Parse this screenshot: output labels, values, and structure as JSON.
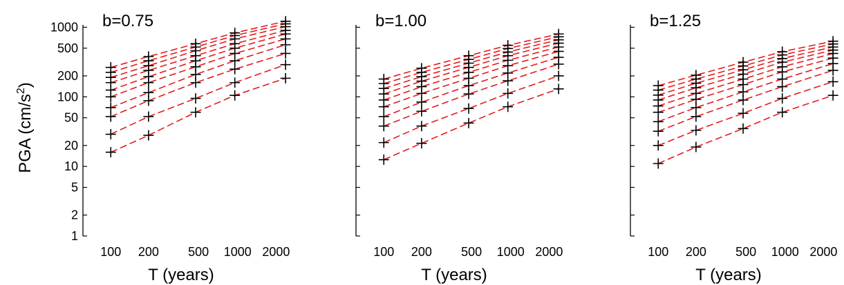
{
  "chart_data": [
    {
      "type": "line",
      "title": "b=0.75",
      "xlabel": "T (years)",
      "ylabel": "PGA (cm/s²)",
      "ylabel_base": "PGA (cm/s",
      "ylabel_sup": "2",
      "ylabel_close": ")",
      "xscale": "log",
      "yscale": "log",
      "xlim": [
        60,
        2700
      ],
      "ylim": [
        1,
        1300
      ],
      "xticks": [
        100,
        200,
        500,
        1000,
        2000
      ],
      "xticklabels": [
        "100",
        "200",
        "500",
        "1000",
        "2000"
      ],
      "yticks": [
        1,
        2,
        5,
        10,
        20,
        50,
        100,
        200,
        500,
        1000
      ],
      "yticklabels": [
        "1",
        "2",
        "5",
        "10",
        "20",
        "50",
        "100",
        "200",
        "500",
        "1000"
      ],
      "show_ytick_labels": true,
      "show_ylabel": true,
      "grid": false,
      "marker_x": [
        100,
        200,
        475,
        975,
        2475
      ],
      "series": [
        {
          "values": [
            16,
            28,
            60,
            105,
            185
          ]
        },
        {
          "values": [
            29,
            52,
            95,
            160,
            290
          ]
        },
        {
          "values": [
            52,
            88,
            160,
            250,
            420
          ]
        },
        {
          "values": [
            70,
            115,
            210,
            330,
            560
          ]
        },
        {
          "values": [
            100,
            160,
            270,
            420,
            680
          ]
        },
        {
          "values": [
            125,
            195,
            330,
            500,
            800
          ]
        },
        {
          "values": [
            160,
            240,
            390,
            580,
            900
          ]
        },
        {
          "values": [
            190,
            280,
            460,
            680,
            1020
          ]
        },
        {
          "values": [
            225,
            330,
            520,
            760,
            1120
          ]
        },
        {
          "values": [
            265,
            380,
            580,
            830,
            1220
          ]
        }
      ]
    },
    {
      "type": "line",
      "title": "b=1.00",
      "xlabel": "T (years)",
      "ylabel": "",
      "xscale": "log",
      "yscale": "log",
      "xlim": [
        60,
        2700
      ],
      "ylim": [
        1,
        1300
      ],
      "xticks": [
        100,
        200,
        500,
        1000,
        2000
      ],
      "xticklabels": [
        "100",
        "200",
        "500",
        "1000",
        "2000"
      ],
      "yticks": [
        1,
        2,
        5,
        10,
        20,
        50,
        100,
        200,
        500,
        1000
      ],
      "show_ytick_labels": false,
      "show_ylabel": false,
      "grid": false,
      "marker_x": [
        100,
        200,
        475,
        975,
        2475
      ],
      "series": [
        {
          "values": [
            12.5,
            21.5,
            42,
            72,
            130
          ]
        },
        {
          "values": [
            22,
            38,
            68,
            112,
            200
          ]
        },
        {
          "values": [
            38,
            62,
            110,
            170,
            295
          ]
        },
        {
          "values": [
            52,
            84,
            145,
            220,
            370
          ]
        },
        {
          "values": [
            72,
            112,
            185,
            280,
            450
          ]
        },
        {
          "values": [
            90,
            140,
            225,
            335,
            520
          ]
        },
        {
          "values": [
            110,
            168,
            265,
            390,
            590
          ]
        },
        {
          "values": [
            132,
            195,
            305,
            440,
            660
          ]
        },
        {
          "values": [
            155,
            225,
            345,
            495,
            730
          ]
        },
        {
          "values": [
            180,
            258,
            390,
            550,
            800
          ]
        }
      ]
    },
    {
      "type": "line",
      "title": "b=1.25",
      "xlabel": "T (years)",
      "ylabel": "",
      "xscale": "log",
      "yscale": "log",
      "xlim": [
        60,
        2700
      ],
      "ylim": [
        1,
        1300
      ],
      "xticks": [
        100,
        200,
        500,
        1000,
        2000
      ],
      "xticklabels": [
        "100",
        "200",
        "500",
        "1000",
        "2000"
      ],
      "yticks": [
        1,
        2,
        5,
        10,
        20,
        50,
        100,
        200,
        500,
        1000
      ],
      "show_ytick_labels": false,
      "show_ylabel": false,
      "grid": false,
      "marker_x": [
        100,
        200,
        475,
        975,
        2475
      ],
      "series": [
        {
          "values": [
            11,
            19,
            35,
            60,
            105
          ]
        },
        {
          "values": [
            20,
            33,
            58,
            95,
            165
          ]
        },
        {
          "values": [
            32,
            52,
            90,
            140,
            240
          ]
        },
        {
          "values": [
            44,
            70,
            118,
            180,
            300
          ]
        },
        {
          "values": [
            60,
            92,
            150,
            228,
            360
          ]
        },
        {
          "values": [
            74,
            112,
            180,
            270,
            420
          ]
        },
        {
          "values": [
            90,
            135,
            212,
            315,
            470
          ]
        },
        {
          "values": [
            106,
            157,
            245,
            355,
            520
          ]
        },
        {
          "values": [
            125,
            180,
            278,
            400,
            575
          ]
        },
        {
          "values": [
            145,
            205,
            315,
            445,
            630
          ]
        }
      ]
    }
  ],
  "colors": {
    "fit_line": "#e31a1c",
    "marker": "#000000",
    "axis": "#000000"
  }
}
